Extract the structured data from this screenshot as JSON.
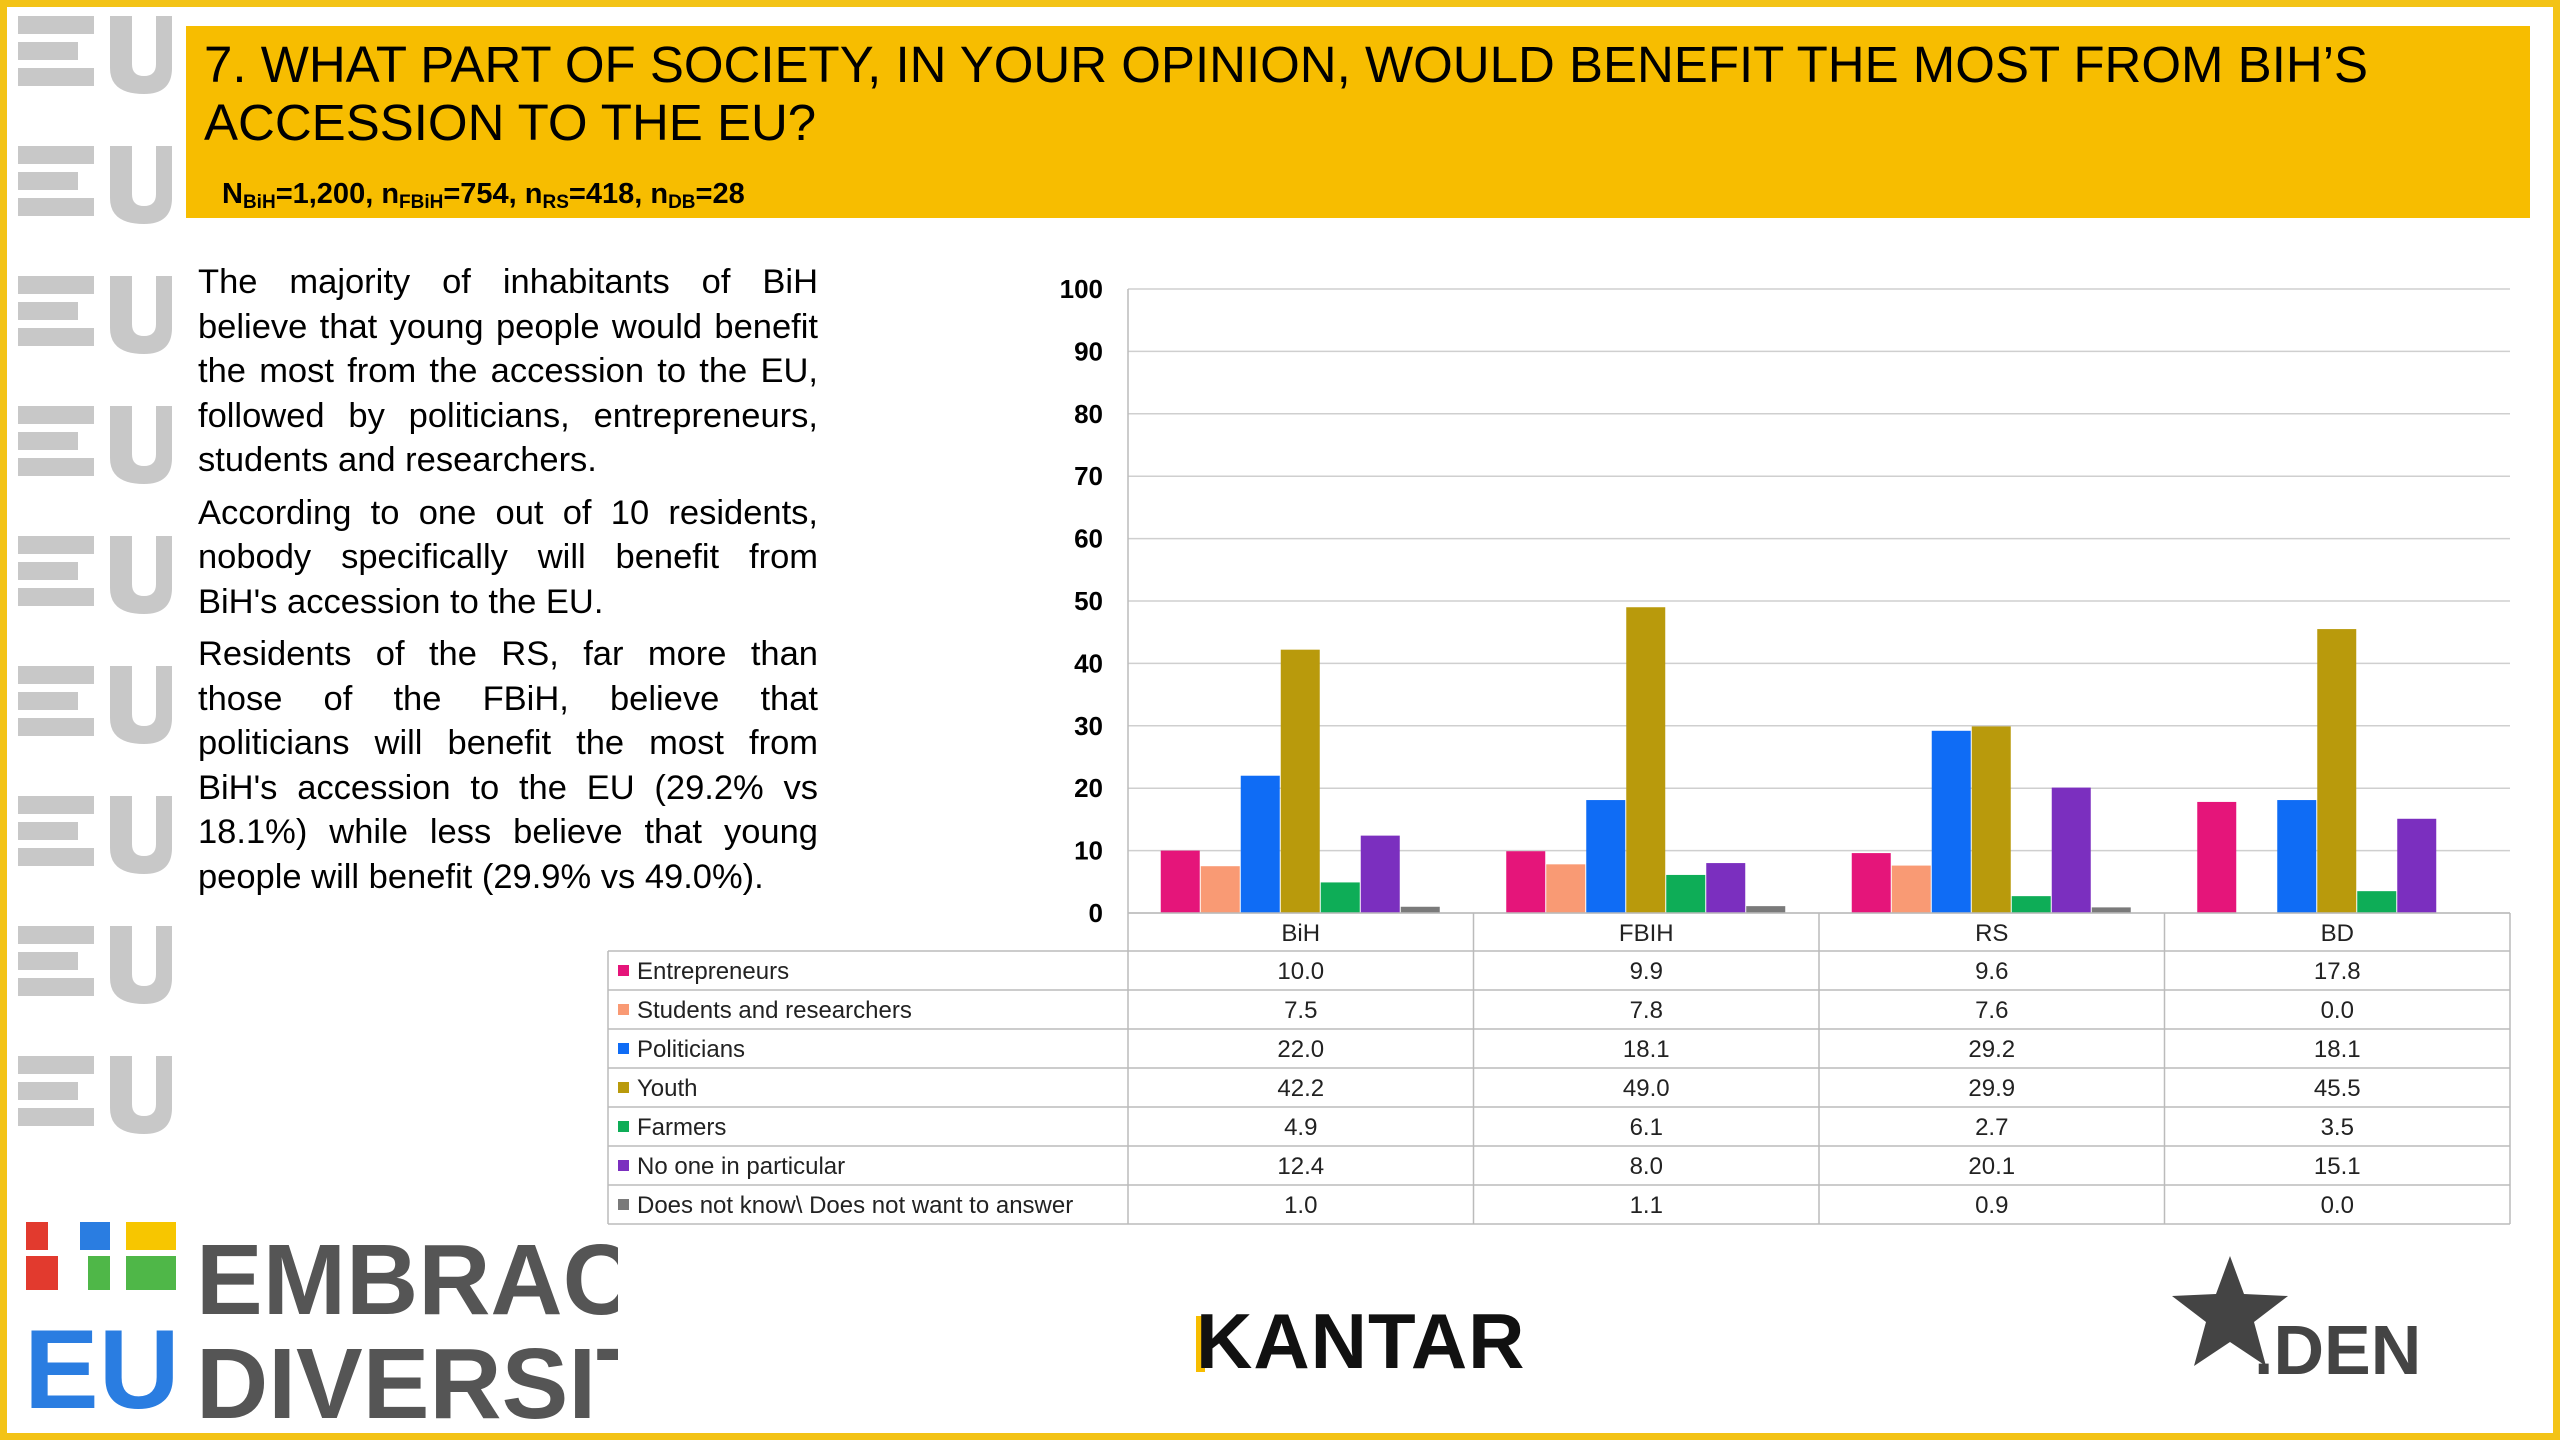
{
  "header": {
    "title": "7. WHAT PART OF SOCIETY, IN YOUR OPINION, WOULD BENEFIT THE MOST FROM BIH’S ACCESSION TO THE EU?",
    "sample": {
      "parts": [
        {
          "base": "N",
          "sub": "BiH",
          "value": "=1,200, "
        },
        {
          "base": "n",
          "sub": "FBiH",
          "value": "=754, "
        },
        {
          "base": "n",
          "sub": "RS",
          "value": "=418, "
        },
        {
          "base": "n",
          "sub": "DB",
          "value": "=28"
        }
      ]
    }
  },
  "text": {
    "paragraphs": [
      "The majority of inhabitants of BiH believe that young people would benefit the most from the accession to the EU, followed by politicians, entrepreneurs, students and researchers.",
      "According to one out of 10 residents, nobody specifically  will benefit from BiH's accession to the EU.",
      "Residents of the RS, far more than those of the FBiH, believe that politicians will benefit the most from BiH's accession to the EU (29.2% vs 18.1%) while less believe that young people will benefit (29.9% vs 49.0%)."
    ]
  },
  "chart_data": {
    "type": "bar",
    "categories": [
      "BiH",
      "FBIH",
      "RS",
      "BD"
    ],
    "ylim": [
      0,
      100
    ],
    "yticks": [
      0,
      10,
      20,
      30,
      40,
      50,
      60,
      70,
      80,
      90,
      100
    ],
    "grid": true,
    "legend": "data-table-below",
    "series": [
      {
        "name": "Entrepreneurs",
        "color": "#e5157a",
        "values": [
          10.0,
          9.9,
          9.6,
          17.8
        ],
        "labels": [
          "10.0",
          "9.9",
          "9.6",
          "17.8"
        ]
      },
      {
        "name": "Students and researchers",
        "color": "#f99a74",
        "values": [
          7.5,
          7.8,
          7.6,
          0.0
        ],
        "labels": [
          "7.5",
          "7.8",
          "7.6",
          "0.0"
        ]
      },
      {
        "name": "Politicians",
        "color": "#0f6cf5",
        "values": [
          22.0,
          18.1,
          29.2,
          18.1
        ],
        "labels": [
          "22.0",
          "18.1",
          "29.2",
          "18.1"
        ]
      },
      {
        "name": "Youth",
        "color": "#b99a0c",
        "values": [
          42.2,
          49.0,
          29.9,
          45.5
        ],
        "labels": [
          "42.2",
          "49.0",
          "29.9",
          "45.5"
        ]
      },
      {
        "name": "Farmers",
        "color": "#0ead57",
        "values": [
          4.9,
          6.1,
          2.7,
          3.5
        ],
        "labels": [
          "4.9",
          "6.1",
          "2.7",
          "3.5"
        ]
      },
      {
        "name": "No one in particular",
        "color": "#7b2fbf",
        "values": [
          12.4,
          8.0,
          20.1,
          15.1
        ],
        "labels": [
          "12.4",
          "8.0",
          "20.1",
          "15.1"
        ]
      },
      {
        "name": "Does not know\\ Does not want to answer",
        "color": "#7a7a7a",
        "values": [
          1.0,
          1.1,
          0.9,
          0.0
        ],
        "labels": [
          "1.0",
          "1.1",
          "0.9",
          "0.0"
        ]
      }
    ]
  },
  "logos": {
    "embrace": {
      "line1": "EMBRACE",
      "line2": "DIVERSITY",
      "mark_top": "BiH",
      "mark_bottom": "EU"
    },
    "kantar": "KANTAR",
    "den": ".DEN"
  },
  "colors": {
    "header_bg": "#f7bd00",
    "frame": "#f3c316",
    "strip_gray": "#c8c8c8"
  }
}
